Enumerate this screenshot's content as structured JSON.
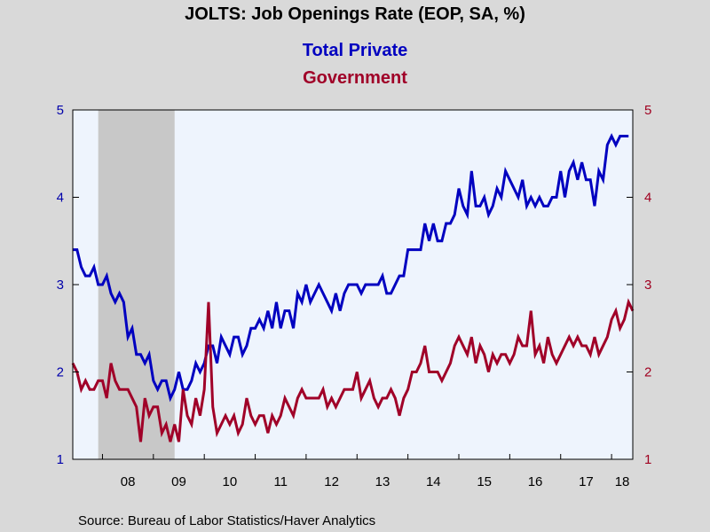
{
  "chart_data": {
    "type": "line",
    "title": "JOLTS: Job Openings Rate (EOP, SA, %)",
    "source": "Source:  Bureau of Labor Statistics/Haver Analytics",
    "x_tick_labels": [
      "08",
      "09",
      "10",
      "11",
      "12",
      "13",
      "14",
      "15",
      "16",
      "17",
      "18"
    ],
    "x_range": [
      2007.4167,
      2018.4167
    ],
    "recession": [
      2007.9167,
      2009.4167
    ],
    "y_left": {
      "range": [
        1,
        5
      ],
      "ticks": [
        "1",
        "2",
        "3",
        "4",
        "5"
      ],
      "color": "#0000aa"
    },
    "y_right": {
      "range": [
        1,
        5
      ],
      "ticks": [
        "1",
        "2",
        "3",
        "4",
        "5"
      ],
      "color": "#a00020"
    },
    "plot_background": "#eef4fd",
    "recession_color": "#c8c8c8",
    "grid": false,
    "series": [
      {
        "name": "Total Private",
        "color": "#0000c0",
        "axis": "left",
        "x_start": 2007.4167,
        "x_step": 0.0833333,
        "values": [
          3.4,
          3.4,
          3.2,
          3.1,
          3.1,
          3.2,
          3.0,
          3.0,
          3.1,
          2.9,
          2.8,
          2.9,
          2.8,
          2.4,
          2.5,
          2.2,
          2.2,
          2.1,
          2.2,
          1.9,
          1.8,
          1.9,
          1.9,
          1.7,
          1.8,
          2.0,
          1.8,
          1.8,
          1.9,
          2.1,
          2.0,
          2.1,
          2.3,
          2.3,
          2.1,
          2.4,
          2.3,
          2.2,
          2.4,
          2.4,
          2.2,
          2.3,
          2.5,
          2.5,
          2.6,
          2.5,
          2.7,
          2.5,
          2.8,
          2.5,
          2.7,
          2.7,
          2.5,
          2.9,
          2.8,
          3.0,
          2.8,
          2.9,
          3.0,
          2.9,
          2.8,
          2.7,
          2.9,
          2.7,
          2.9,
          3.0,
          3.0,
          3.0,
          2.9,
          3.0,
          3.0,
          3.0,
          3.0,
          3.1,
          2.9,
          2.9,
          3.0,
          3.1,
          3.1,
          3.4,
          3.4,
          3.4,
          3.4,
          3.7,
          3.5,
          3.7,
          3.5,
          3.5,
          3.7,
          3.7,
          3.8,
          4.1,
          3.9,
          3.8,
          4.3,
          3.9,
          3.9,
          4.0,
          3.8,
          3.9,
          4.1,
          4.0,
          4.3,
          4.2,
          4.1,
          4.0,
          4.2,
          3.9,
          4.0,
          3.9,
          4.0,
          3.9,
          3.9,
          4.0,
          4.0,
          4.3,
          4.0,
          4.3,
          4.4,
          4.2,
          4.4,
          4.2,
          4.2,
          3.9,
          4.3,
          4.2,
          4.6,
          4.7,
          4.6,
          4.7,
          4.7,
          4.7
        ]
      },
      {
        "name": "Government",
        "color": "#a00028",
        "axis": "right",
        "x_start": 2007.4167,
        "x_step": 0.0833333,
        "values": [
          2.1,
          2.0,
          1.8,
          1.9,
          1.8,
          1.8,
          1.9,
          1.9,
          1.7,
          2.1,
          1.9,
          1.8,
          1.8,
          1.8,
          1.7,
          1.6,
          1.2,
          1.7,
          1.5,
          1.6,
          1.6,
          1.3,
          1.4,
          1.2,
          1.4,
          1.2,
          1.8,
          1.5,
          1.4,
          1.7,
          1.5,
          1.8,
          2.8,
          1.6,
          1.3,
          1.4,
          1.5,
          1.4,
          1.5,
          1.3,
          1.4,
          1.7,
          1.5,
          1.4,
          1.5,
          1.5,
          1.3,
          1.5,
          1.4,
          1.5,
          1.7,
          1.6,
          1.5,
          1.7,
          1.8,
          1.7,
          1.7,
          1.7,
          1.7,
          1.8,
          1.6,
          1.7,
          1.6,
          1.7,
          1.8,
          1.8,
          1.8,
          2.0,
          1.7,
          1.8,
          1.9,
          1.7,
          1.6,
          1.7,
          1.7,
          1.8,
          1.7,
          1.5,
          1.7,
          1.8,
          2.0,
          2.0,
          2.1,
          2.3,
          2.0,
          2.0,
          2.0,
          1.9,
          2.0,
          2.1,
          2.3,
          2.4,
          2.3,
          2.2,
          2.4,
          2.1,
          2.3,
          2.2,
          2.0,
          2.2,
          2.1,
          2.2,
          2.2,
          2.1,
          2.2,
          2.4,
          2.3,
          2.3,
          2.7,
          2.2,
          2.3,
          2.1,
          2.4,
          2.2,
          2.1,
          2.2,
          2.3,
          2.4,
          2.3,
          2.4,
          2.3,
          2.3,
          2.2,
          2.4,
          2.2,
          2.3,
          2.4,
          2.6,
          2.7,
          2.5,
          2.6,
          2.8,
          2.7
        ]
      }
    ]
  }
}
